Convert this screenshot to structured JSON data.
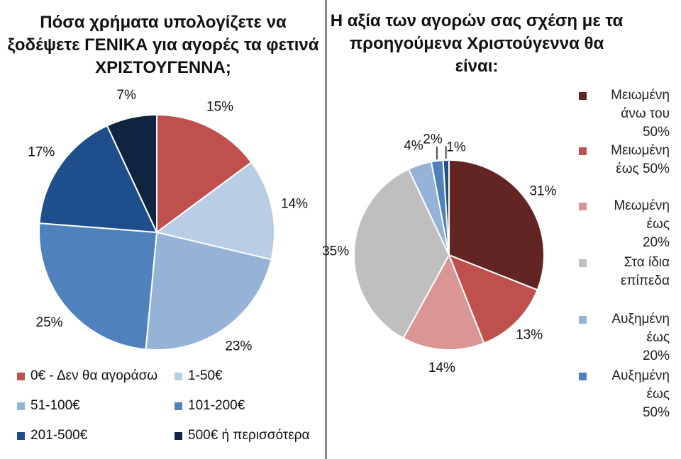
{
  "chart_data": [
    {
      "type": "pie",
      "title": "Πόσα χρήματα υπολογίζετε να ξοδέψετε ΓΕΝΙΚΑ για αγορές τα φετινά ΧΡΙΣΤΟΥΓΕΝΝΑ;",
      "legend_position": "bottom",
      "slices": [
        {
          "label": "0€ - Δεν θα αγοράσω",
          "value": 15,
          "value_label": "15%",
          "color": "#C0504D"
        },
        {
          "label": "1-50€",
          "value": 14,
          "value_label": "14%",
          "color": "#B9CDE5"
        },
        {
          "label": "51-100€",
          "value": 23,
          "value_label": "23%",
          "color": "#95B3D7"
        },
        {
          "label": "101-200€",
          "value": 25,
          "value_label": "25%",
          "color": "#4F81BD"
        },
        {
          "label": "201-500€",
          "value": 17,
          "value_label": "17%",
          "color": "#1F4E8C"
        },
        {
          "label": "500€ ή περισσότερα",
          "value": 7,
          "value_label": "7%",
          "color": "#10243F"
        }
      ]
    },
    {
      "type": "pie",
      "title": "Η αξία των αγορών σας σχέση με τα προηγούμενα Χριστούγεννα θα είναι:",
      "legend_position": "right",
      "slices": [
        {
          "label": "Μειωμένη\nάνω του 50%",
          "value": 31,
          "value_label": "31%",
          "color": "#632523"
        },
        {
          "label": "Μειωμένη\nέως 50%",
          "value": 13,
          "value_label": "13%",
          "color": "#C0504D"
        },
        {
          "label": "Μεωμένη έως\n20%",
          "value": 14,
          "value_label": "14%",
          "color": "#D99694"
        },
        {
          "label": "Στα ίδια\nεπίπεδα",
          "value": 35,
          "value_label": "35%",
          "color": "#BFBFBF"
        },
        {
          "label": "Αυξημένη έως\n20%",
          "value": 4,
          "value_label": "4%",
          "color": "#95B3D7"
        },
        {
          "label": "Αυξημένη έως\n50%",
          "value": 2,
          "value_label": "2%",
          "color": "#4F81BD"
        },
        {
          "label": "",
          "value": 1,
          "value_label": "1%",
          "color": "#1F4E8C"
        }
      ]
    }
  ]
}
